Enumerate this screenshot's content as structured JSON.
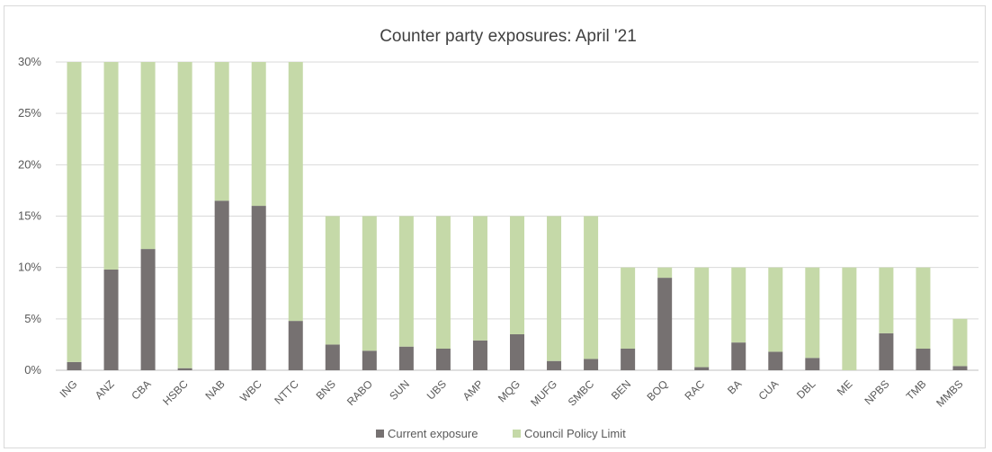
{
  "chart_data": {
    "type": "bar",
    "stacked": true,
    "title": "Counter party exposures: April '21",
    "xlabel": "",
    "ylabel": "",
    "ylim": [
      0,
      30
    ],
    "y_ticks": [
      "0%",
      "5%",
      "10%",
      "15%",
      "20%",
      "25%",
      "30%"
    ],
    "grid": true,
    "legend_position": "bottom",
    "categories": [
      "ING",
      "ANZ",
      "CBA",
      "HSBC",
      "NAB",
      "WBC",
      "NTTC",
      "BNS",
      "RABO",
      "SUN",
      "UBS",
      "AMP",
      "MQG",
      "MUFG",
      "SMBC",
      "BEN",
      "BOQ",
      "RAC",
      "BA",
      "CUA",
      "DBL",
      "ME",
      "NPBS",
      "TMB",
      "MMBS"
    ],
    "series": [
      {
        "name": "Current exposure",
        "color": "#767171",
        "values": [
          0.8,
          9.8,
          11.8,
          0.2,
          16.5,
          16.0,
          4.8,
          2.5,
          1.9,
          2.3,
          2.1,
          2.9,
          3.5,
          0.9,
          1.1,
          2.1,
          9.0,
          0.3,
          2.7,
          1.8,
          1.2,
          0.0,
          3.6,
          2.1,
          0.4
        ]
      },
      {
        "name": "Council Policy Limit",
        "color": "#c5d9a8",
        "values": [
          29.2,
          20.2,
          18.2,
          29.8,
          13.5,
          14.0,
          25.2,
          12.5,
          13.1,
          12.7,
          12.9,
          12.1,
          11.5,
          14.1,
          13.9,
          7.9,
          1.0,
          9.7,
          7.3,
          8.2,
          8.8,
          10.0,
          6.4,
          7.9,
          4.6
        ]
      }
    ]
  }
}
